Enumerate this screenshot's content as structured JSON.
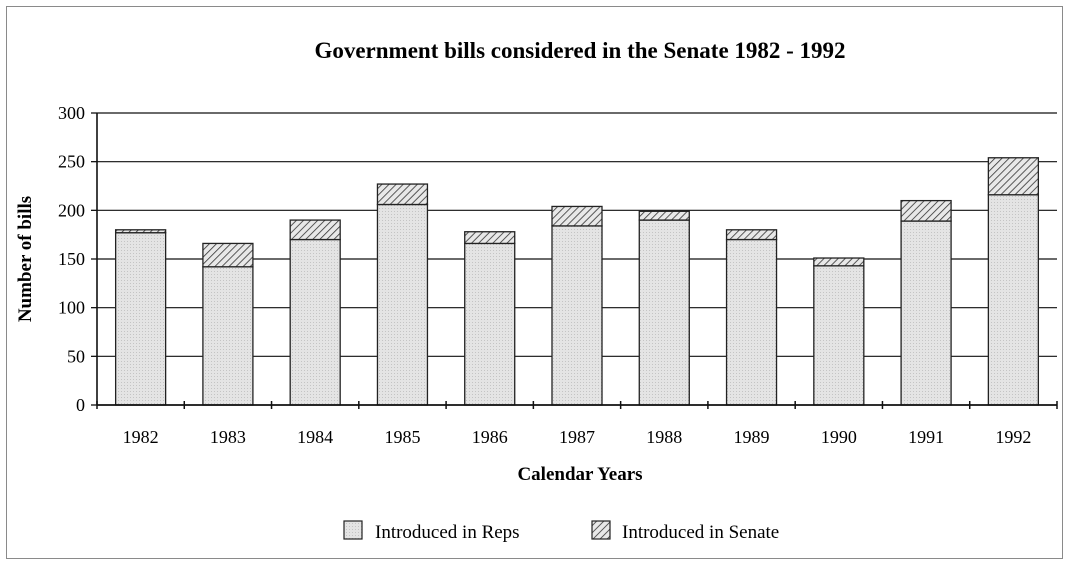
{
  "chart_data": {
    "type": "bar",
    "stacked": true,
    "title": "Government bills considered in the Senate  1982 - 1992",
    "xlabel": "Calendar Years",
    "ylabel": "Number of bills",
    "ylim": [
      0,
      300
    ],
    "yticks": [
      "0",
      "50",
      "100",
      "150",
      "200",
      "250",
      "300"
    ],
    "grid": true,
    "legend_position": "bottom",
    "categories": [
      "1982",
      "1983",
      "1984",
      "1985",
      "1986",
      "1987",
      "1988",
      "1989",
      "1990",
      "1991",
      "1992"
    ],
    "series": [
      {
        "name": "Introduced in Reps",
        "fill": "#e0e0e0",
        "values": [
          177,
          142,
          170,
          206,
          166,
          184,
          190,
          170,
          143,
          189,
          216
        ]
      },
      {
        "name": "Introduced in Senate",
        "fill": "hatched",
        "values": [
          3,
          24,
          20,
          21,
          12,
          20,
          9,
          10,
          8,
          21,
          38
        ]
      }
    ]
  },
  "colors": {
    "frame": "#8a8a8a",
    "bar_edge": "#222222",
    "reps_fill": "#e0e0e0",
    "senate_fill": "#d8d8d8",
    "hatch": "#333333",
    "gridline": "#111111"
  }
}
